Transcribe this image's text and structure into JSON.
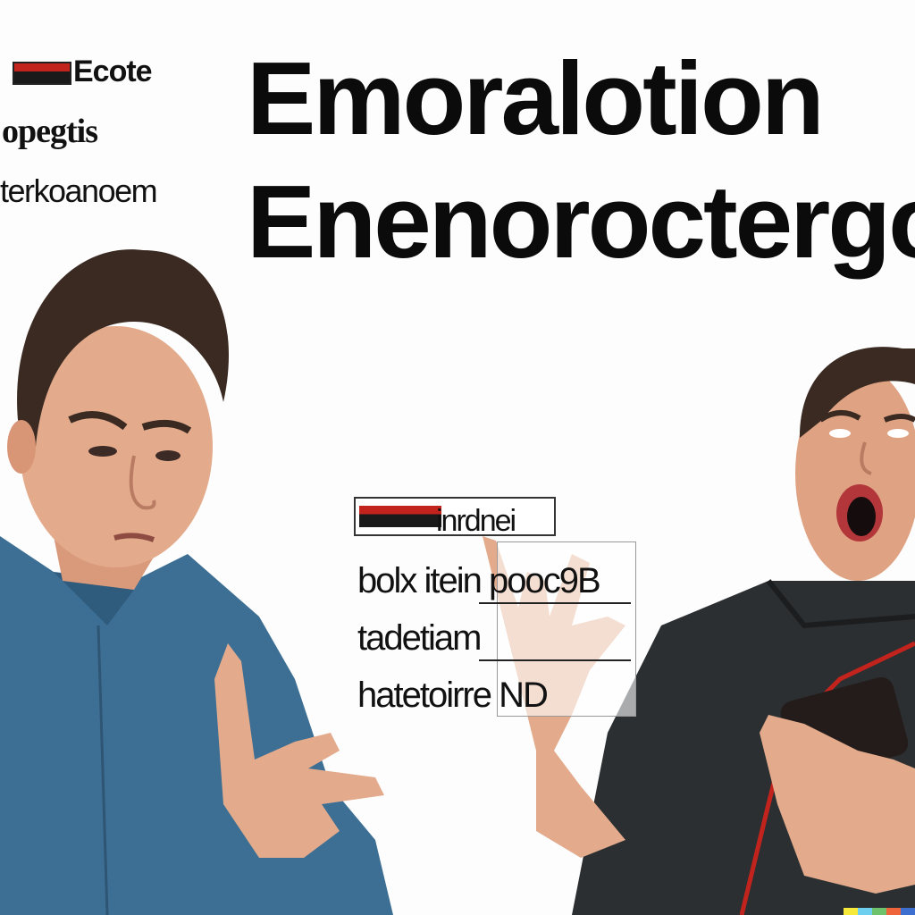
{
  "side_text": {
    "line1": "Ecote",
    "line2": "opegtis",
    "line3": "terkoanoem"
  },
  "headline": {
    "line1": "Emoralotion",
    "line2": "Enenoroctergo"
  },
  "card": {
    "row1": "inrdnei",
    "row2": "bolx itein pooc9B",
    "row3": "tadetiam",
    "row4": "hatetoirre ND"
  },
  "colors": {
    "left_shirt": "#3d6f94",
    "right_shirt": "#2c2f31",
    "skin": "#e0a88a",
    "hair": "#3a2a22",
    "accent_red": "#c2231d"
  },
  "watermark_colors": [
    "#f7e93a",
    "#6ed0ee",
    "#6ec26b",
    "#f0643c",
    "#3d6fd1"
  ]
}
